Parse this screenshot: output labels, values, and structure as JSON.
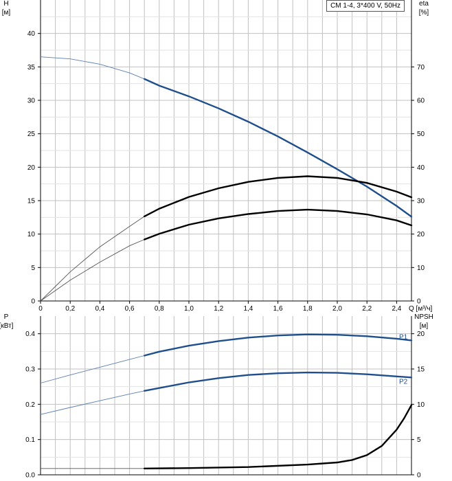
{
  "header": {
    "model_label": "CM 1-4, 3*400 V, 50Hz"
  },
  "colors": {
    "blue": "#1f4e8c",
    "black": "#000000",
    "grid": "#c0c0c0",
    "thin_gray": "#888888"
  },
  "chart_data": [
    {
      "type": "line",
      "name_chart": "upper",
      "xlabel": "Q [м³/ч]",
      "y_left_label": [
        "H",
        "[м]"
      ],
      "y_right_label": [
        "eta",
        "[%]"
      ],
      "xlim": [
        0,
        2.5
      ],
      "ylim_left": [
        0,
        45
      ],
      "ylim_right": [
        0,
        90
      ],
      "x_ticks": [
        "0",
        "0,2",
        "0,4",
        "0,6",
        "0,8",
        "1,0",
        "1,2",
        "1,4",
        "1,6",
        "1,8",
        "2,0",
        "2,2",
        "2,4"
      ],
      "y_left_ticks": [
        "0",
        "5",
        "10",
        "15",
        "20",
        "25",
        "30",
        "35",
        "40"
      ],
      "y_right_ticks": [
        "0",
        "10",
        "20",
        "30",
        "40",
        "50",
        "60",
        "70"
      ],
      "grid": true,
      "series": [
        {
          "key": "head",
          "axis": "left",
          "color": "#1f4e8c",
          "points": [
            [
              0,
              36.5
            ],
            [
              0.2,
              36.2
            ],
            [
              0.4,
              35.4
            ],
            [
              0.6,
              34.1
            ],
            [
              0.7,
              33.2
            ],
            [
              0.8,
              32.2
            ],
            [
              1.0,
              30.6
            ],
            [
              1.2,
              28.8
            ],
            [
              1.4,
              26.8
            ],
            [
              1.6,
              24.6
            ],
            [
              1.8,
              22.2
            ],
            [
              2.0,
              19.7
            ],
            [
              2.2,
              17.1
            ],
            [
              2.4,
              14.2
            ],
            [
              2.5,
              12.6
            ]
          ],
          "thick_from": 0.7
        },
        {
          "key": "eta_pump",
          "axis": "right",
          "color": "#000000",
          "points": [
            [
              0,
              0
            ],
            [
              0.2,
              8.7
            ],
            [
              0.4,
              16.2
            ],
            [
              0.6,
              22.3
            ],
            [
              0.7,
              25.3
            ],
            [
              0.8,
              27.6
            ],
            [
              1.0,
              31.1
            ],
            [
              1.2,
              33.7
            ],
            [
              1.4,
              35.6
            ],
            [
              1.6,
              36.8
            ],
            [
              1.8,
              37.3
            ],
            [
              2.0,
              36.8
            ],
            [
              2.2,
              35.3
            ],
            [
              2.4,
              32.7
            ],
            [
              2.5,
              31.0
            ]
          ],
          "thick_from": 0.7
        },
        {
          "key": "eta_total",
          "axis": "right",
          "color": "#000000",
          "points": [
            [
              0,
              0
            ],
            [
              0.2,
              6.2
            ],
            [
              0.4,
              11.6
            ],
            [
              0.6,
              16.5
            ],
            [
              0.7,
              18.4
            ],
            [
              0.8,
              20.1
            ],
            [
              1.0,
              22.8
            ],
            [
              1.2,
              24.7
            ],
            [
              1.4,
              26.0
            ],
            [
              1.6,
              26.9
            ],
            [
              1.8,
              27.3
            ],
            [
              2.0,
              26.9
            ],
            [
              2.2,
              25.9
            ],
            [
              2.4,
              24.1
            ],
            [
              2.5,
              22.6
            ]
          ],
          "thick_from": 0.7
        }
      ]
    },
    {
      "type": "line",
      "name_chart": "lower",
      "y_left_label": [
        "P",
        "[кВт]"
      ],
      "y_right_label": [
        "NPSH",
        "[м]"
      ],
      "xlim": [
        0,
        2.5
      ],
      "ylim_left": [
        0,
        0.45
      ],
      "ylim_right": [
        0,
        22.5
      ],
      "y_left_ticks": [
        "0.0",
        "0.1",
        "0.2",
        "0.3",
        "0.4"
      ],
      "y_right_ticks": [
        "0",
        "5",
        "10",
        "15",
        "20"
      ],
      "grid": true,
      "series": [
        {
          "key": "P1",
          "label": "P1",
          "axis": "left",
          "color": "#1f4e8c",
          "points": [
            [
              0,
              0.26
            ],
            [
              0.2,
              0.283
            ],
            [
              0.4,
              0.305
            ],
            [
              0.6,
              0.327
            ],
            [
              0.7,
              0.338
            ],
            [
              0.8,
              0.349
            ],
            [
              1.0,
              0.366
            ],
            [
              1.2,
              0.379
            ],
            [
              1.4,
              0.389
            ],
            [
              1.6,
              0.395
            ],
            [
              1.8,
              0.398
            ],
            [
              2.0,
              0.397
            ],
            [
              2.2,
              0.393
            ],
            [
              2.4,
              0.386
            ],
            [
              2.5,
              0.381
            ]
          ],
          "thick_from": 0.7
        },
        {
          "key": "P2",
          "label": "P2",
          "axis": "left",
          "color": "#1f4e8c",
          "points": [
            [
              0,
              0.171
            ],
            [
              0.2,
              0.191
            ],
            [
              0.4,
              0.21
            ],
            [
              0.6,
              0.229
            ],
            [
              0.7,
              0.238
            ],
            [
              0.8,
              0.246
            ],
            [
              1.0,
              0.262
            ],
            [
              1.2,
              0.274
            ],
            [
              1.4,
              0.283
            ],
            [
              1.6,
              0.288
            ],
            [
              1.8,
              0.29
            ],
            [
              2.0,
              0.289
            ],
            [
              2.2,
              0.285
            ],
            [
              2.4,
              0.279
            ],
            [
              2.5,
              0.276
            ]
          ],
          "thick_from": 0.7
        },
        {
          "key": "NPSH",
          "axis": "right",
          "color": "#000000",
          "points": [
            [
              0,
              0.9
            ],
            [
              0.7,
              0.9
            ],
            [
              1.0,
              0.95
            ],
            [
              1.4,
              1.1
            ],
            [
              1.8,
              1.45
            ],
            [
              2.0,
              1.75
            ],
            [
              2.1,
              2.1
            ],
            [
              2.2,
              2.8
            ],
            [
              2.3,
              4.1
            ],
            [
              2.4,
              6.4
            ],
            [
              2.45,
              8.0
            ],
            [
              2.5,
              9.9
            ]
          ],
          "thick_from": 0.7
        }
      ]
    }
  ]
}
